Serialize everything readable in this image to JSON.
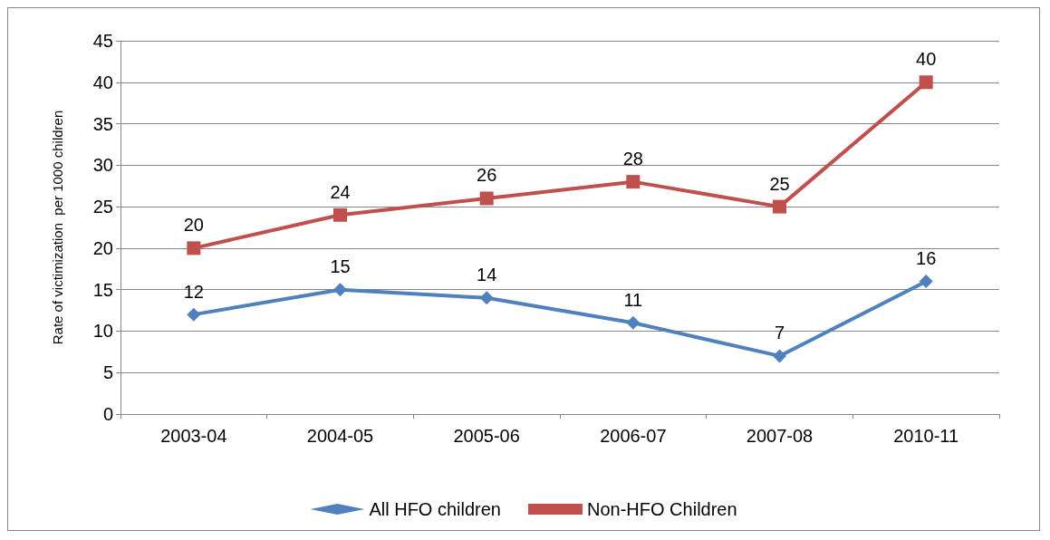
{
  "chart_data": {
    "type": "line",
    "ylabel": "Rate of victimization  per 1000 children",
    "categories": [
      "2003-04",
      "2004-05",
      "2005-06",
      "2006-07",
      "2007-08",
      "2010-11"
    ],
    "series": [
      {
        "name": "All HFO children",
        "color": "#4f81bd",
        "marker": "diamond",
        "values": [
          12,
          15,
          14,
          11,
          7,
          16
        ]
      },
      {
        "name": "Non-HFO Children",
        "color": "#c0504d",
        "marker": "square",
        "values": [
          20,
          24,
          26,
          28,
          25,
          40
        ]
      }
    ],
    "ylim": [
      0,
      45
    ],
    "yticks": [
      0,
      5,
      10,
      15,
      20,
      25,
      30,
      35,
      40,
      45
    ],
    "grid": "y",
    "legend": "bottom",
    "data_labels": true,
    "line_style": "solid"
  }
}
